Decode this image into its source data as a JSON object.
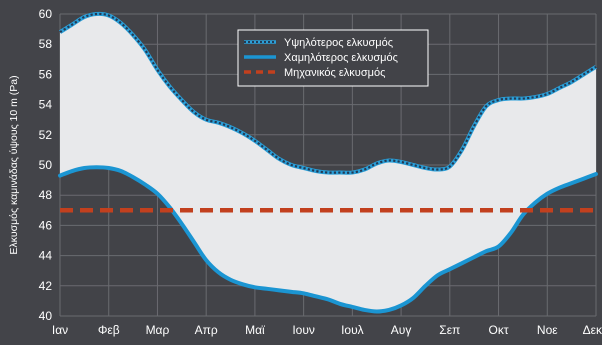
{
  "chart_data": {
    "type": "line",
    "xlabel": "",
    "ylabel": "Ελκυσμός καμινάδας ύψους 10 m (Pa)",
    "ylim": [
      40,
      60
    ],
    "yticks": [
      40,
      42,
      44,
      46,
      48,
      50,
      52,
      54,
      56,
      58,
      60
    ],
    "categories": [
      "Ιαν",
      "Φεβ",
      "Μαρ",
      "Απρ",
      "Μαϊ",
      "Ιουν",
      "Ιουλ",
      "Αυγ",
      "Σεπ",
      "Οκτ",
      "Νοε",
      "Δεκ"
    ],
    "grid": true,
    "legend_position": "top-center",
    "fill_between_series": true,
    "series": [
      {
        "name": "Υψηλότερος ελκυσμός",
        "color": "#2a9fd8",
        "style": "dotted-on-solid",
        "x": [
          0,
          0.25,
          0.5,
          0.75,
          1,
          1.25,
          1.5,
          1.75,
          2,
          2.25,
          2.5,
          2.75,
          3,
          3.25,
          3.5,
          3.75,
          4,
          4.25,
          4.5,
          4.75,
          5,
          5.25,
          5.5,
          5.75,
          6,
          6.25,
          6.5,
          6.75,
          7,
          7.25,
          7.5,
          7.75,
          8,
          8.25,
          8.5,
          8.75,
          9,
          9.25,
          9.5,
          9.75,
          10,
          10.25,
          10.5,
          10.75,
          11
        ],
        "values": [
          58.8,
          59.3,
          59.8,
          60.0,
          59.9,
          59.4,
          58.6,
          57.6,
          56.3,
          55.2,
          54.3,
          53.5,
          53.0,
          52.8,
          52.5,
          52.1,
          51.6,
          51.0,
          50.4,
          50.0,
          49.8,
          49.6,
          49.5,
          49.5,
          49.5,
          49.7,
          50.1,
          50.3,
          50.2,
          50.0,
          49.8,
          49.7,
          49.9,
          51.0,
          52.6,
          53.9,
          54.3,
          54.4,
          54.4,
          54.5,
          54.7,
          55.1,
          55.5,
          56.0,
          56.5
        ]
      },
      {
        "name": "Χαμηλότερος ελκυσμός",
        "color": "#1b95d2",
        "style": "solid",
        "x": [
          0,
          0.25,
          0.5,
          0.75,
          1,
          1.25,
          1.5,
          1.75,
          2,
          2.25,
          2.5,
          2.75,
          3,
          3.25,
          3.5,
          3.75,
          4,
          4.25,
          4.5,
          4.75,
          5,
          5.25,
          5.5,
          5.75,
          6,
          6.25,
          6.5,
          6.75,
          7,
          7.25,
          7.5,
          7.75,
          8,
          8.25,
          8.5,
          8.75,
          9,
          9.25,
          9.5,
          9.75,
          10,
          10.25,
          10.5,
          10.75,
          11
        ],
        "values": [
          49.3,
          49.6,
          49.8,
          49.85,
          49.8,
          49.6,
          49.2,
          48.7,
          48.1,
          47.2,
          46.1,
          44.9,
          43.7,
          42.9,
          42.4,
          42.1,
          41.9,
          41.8,
          41.7,
          41.6,
          41.5,
          41.3,
          41.1,
          40.8,
          40.6,
          40.4,
          40.3,
          40.4,
          40.7,
          41.2,
          42.0,
          42.7,
          43.1,
          43.5,
          43.9,
          44.3,
          44.6,
          45.5,
          46.7,
          47.5,
          48.1,
          48.5,
          48.8,
          49.1,
          49.4
        ]
      },
      {
        "name": "Μηχανικός ελκυσμός",
        "color": "#c2401e",
        "style": "dashed",
        "x": [
          0,
          11
        ],
        "values": [
          47,
          47
        ]
      }
    ]
  }
}
